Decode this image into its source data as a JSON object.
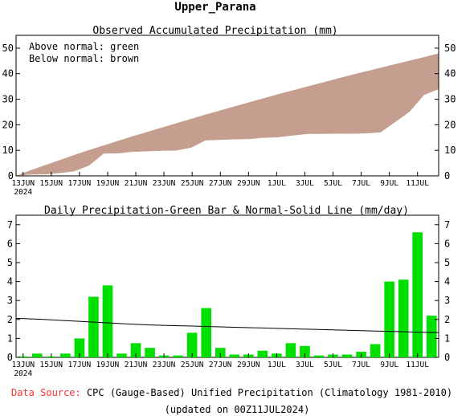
{
  "title": "Upper_Parana",
  "colors": {
    "above_normal": "#00ff00",
    "below_normal": "#c59e90",
    "daily_bar": "#00e000",
    "normal_line": "#000000",
    "data_source_label": "#ff3030"
  },
  "footer": {
    "data_source_label": "Data Source:",
    "data_source_text": "CPC (Gauge-Based) Unified Precipitation (Climatology 1981-2010)",
    "updated": "(updated on 00Z11JUL2024)"
  },
  "chart_data": [
    {
      "type": "area",
      "title": "Observed Accumulated Precipitation (mm)",
      "legend": [
        "Above normal: green",
        "Below normal: brown"
      ],
      "legend_position": "top-left",
      "x_tick_labels": [
        "13JUN",
        "15JUN",
        "17JUN",
        "19JUN",
        "21JUN",
        "23JUN",
        "25JUN",
        "27JUN",
        "29JUN",
        "1JUL",
        "3JUL",
        "5JUL",
        "7JUL",
        "9JUL",
        "11JUL"
      ],
      "x_year_label": "2024",
      "ylim": [
        0,
        55
      ],
      "yticks": [
        0,
        10,
        20,
        30,
        40,
        50
      ],
      "grid": false,
      "day_offsets": [
        0,
        1,
        2,
        3,
        4,
        5,
        6,
        7,
        8,
        9,
        10,
        11,
        12,
        13,
        14,
        15,
        16,
        17,
        18,
        19,
        20,
        21,
        22,
        23,
        24,
        25,
        26,
        27,
        28,
        29
      ],
      "series": [
        {
          "name": "Observed",
          "values": [
            0.2,
            0.6,
            0.7,
            1.2,
            1.9,
            4.1,
            8.8,
            8.9,
            9.5,
            9.7,
            9.9,
            10.0,
            11.1,
            14.0,
            14.2,
            14.4,
            14.5,
            15.0,
            15.2,
            15.9,
            16.5,
            16.5,
            16.6,
            16.6,
            16.7,
            17.1,
            21.1,
            25.2,
            31.8,
            34.0
          ]
        },
        {
          "name": "Normal",
          "values": [
            0.0,
            2.1,
            4.1,
            6.1,
            8.1,
            10.0,
            11.8,
            13.6,
            15.4,
            17.1,
            18.8,
            20.5,
            22.2,
            23.9,
            25.5,
            27.1,
            28.7,
            30.3,
            31.9,
            33.4,
            34.9,
            36.4,
            37.9,
            39.4,
            40.8,
            42.2,
            43.6,
            45.0,
            46.4,
            47.8
          ]
        }
      ]
    },
    {
      "type": "bar",
      "title": "Daily Precipitation-Green Bar & Normal-Solid Line (mm/day)",
      "x_tick_labels": [
        "13JUN",
        "15JUN",
        "17JUN",
        "19JUN",
        "21JUN",
        "23JUN",
        "25JUN",
        "27JUN",
        "29JUN",
        "1JUL",
        "3JUL",
        "5JUL",
        "7JUL",
        "9JUL",
        "11JUL"
      ],
      "x_year_label": "2024",
      "ylim": [
        0,
        7.5
      ],
      "yticks": [
        0,
        1,
        2,
        3,
        4,
        5,
        6,
        7
      ],
      "grid": false,
      "day_offsets": [
        0,
        1,
        2,
        3,
        4,
        5,
        6,
        7,
        8,
        9,
        10,
        11,
        12,
        13,
        14,
        15,
        16,
        17,
        18,
        19,
        20,
        21,
        22,
        23,
        24,
        25,
        26,
        27,
        28,
        29
      ],
      "series": [
        {
          "name": "Daily Precipitation",
          "values": [
            0.05,
            0.2,
            0.05,
            0.2,
            1.0,
            3.2,
            3.8,
            0.2,
            0.75,
            0.5,
            0.1,
            0.1,
            1.3,
            2.6,
            0.5,
            0.15,
            0.15,
            0.35,
            0.2,
            0.75,
            0.6,
            0.1,
            0.15,
            0.15,
            0.3,
            0.7,
            4.0,
            4.1,
            6.6,
            2.2
          ]
        },
        {
          "name": "Normal",
          "values": [
            2.06,
            2.02,
            1.98,
            1.94,
            1.9,
            1.86,
            1.82,
            1.78,
            1.74,
            1.71,
            1.69,
            1.67,
            1.65,
            1.63,
            1.61,
            1.59,
            1.57,
            1.55,
            1.53,
            1.51,
            1.49,
            1.47,
            1.45,
            1.43,
            1.41,
            1.39,
            1.37,
            1.35,
            1.33,
            1.31
          ]
        }
      ]
    }
  ]
}
